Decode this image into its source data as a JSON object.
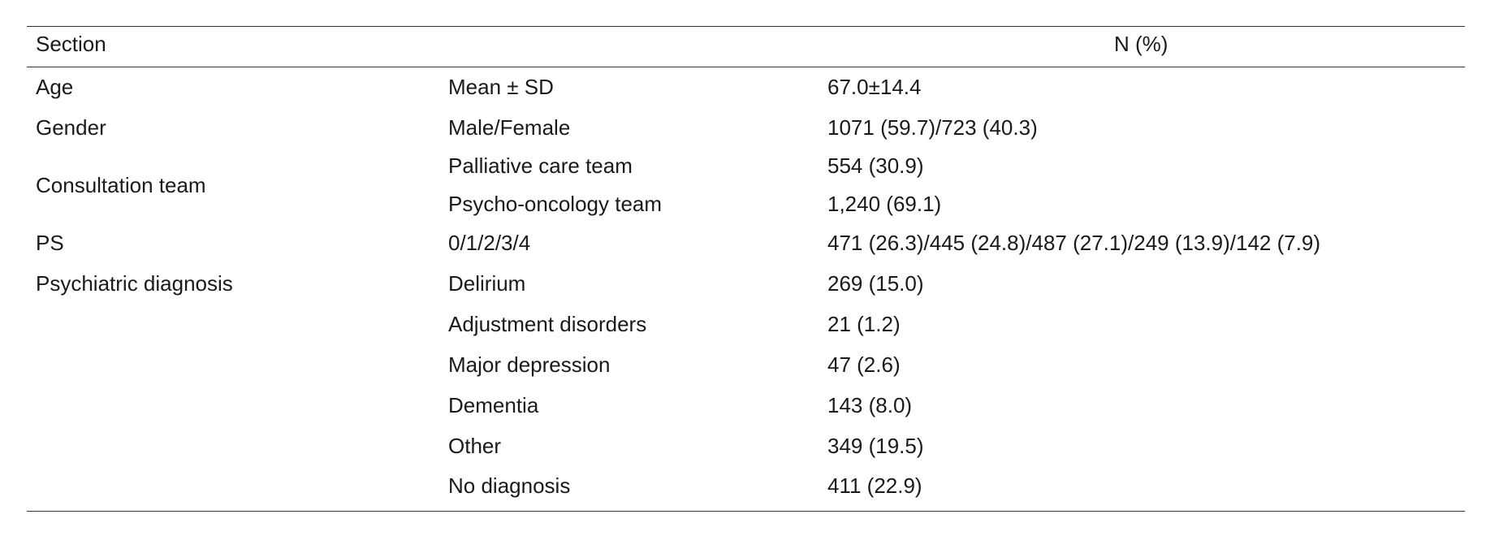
{
  "table": {
    "headers": {
      "section": "Section",
      "value": "N (%)"
    },
    "rows": [
      {
        "section": "Age",
        "item": "Mean ± SD",
        "value": "67.0±14.4"
      },
      {
        "section": "Gender",
        "item": "Male/Female",
        "value": "1071 (59.7)/723 (40.3)"
      },
      {
        "section": "Consultation team",
        "item": "Palliative care team",
        "value": "554 (30.9)"
      },
      {
        "section": "",
        "item": "Psycho-oncology team",
        "value": "1,240 (69.1)"
      },
      {
        "section": "PS",
        "item": "0/1/2/3/4",
        "value": "471 (26.3)/445 (24.8)/487 (27.1)/249 (13.9)/142 (7.9)"
      },
      {
        "section": "Psychiatric diagnosis",
        "item": "Delirium",
        "value": "269 (15.0)"
      },
      {
        "section": "",
        "item": "Adjustment disorders",
        "value": "21 (1.2)"
      },
      {
        "section": "",
        "item": "Major depression",
        "value": "47 (2.6)"
      },
      {
        "section": "",
        "item": "Dementia",
        "value": "143 (8.0)"
      },
      {
        "section": "",
        "item": "Other",
        "value": "349 (19.5)"
      },
      {
        "section": "",
        "item": "No diagnosis",
        "value": "411 (22.9)"
      }
    ]
  }
}
